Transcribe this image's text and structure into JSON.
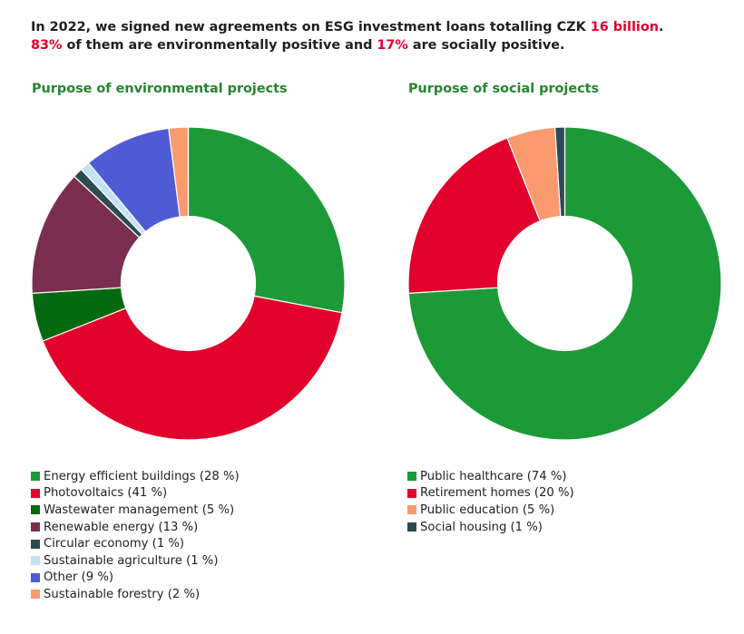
{
  "headline": {
    "l1_a": "In 2022, we signed new agreements on ESG investment loans totalling CZK ",
    "l1_b": "16 billion",
    "l1_c": ".",
    "l2_a": "83%",
    "l2_b": " of them are environmentally positive and ",
    "l2_c": "17%",
    "l2_d": " are socially positive."
  },
  "colors": {
    "accent_red": "#e2002c",
    "title_green": "#23862f"
  },
  "chart_data": [
    {
      "type": "pie",
      "donut": true,
      "title": "Purpose of environmental projects",
      "legend_position": "bottom",
      "slices": [
        {
          "label": "Energy efficient buildings (28 %)",
          "value": 28,
          "color": "#1b9a37"
        },
        {
          "label": "Photovoltaics (41 %)",
          "value": 41,
          "color": "#e2002c"
        },
        {
          "label": "Wastewater management (5 %)",
          "value": 5,
          "color": "#056a0f"
        },
        {
          "label": "Renewable energy (13 %)",
          "value": 13,
          "color": "#7a2f50"
        },
        {
          "label": "Circular economy (1 %)",
          "value": 1,
          "color": "#2e4a52"
        },
        {
          "label": "Sustainable agriculture (1 %)",
          "value": 1,
          "color": "#c4e2f7"
        },
        {
          "label": "Other (9 %)",
          "value": 9,
          "color": "#4f5bd5"
        },
        {
          "label": "Sustainable forestry (2 %)",
          "value": 2,
          "color": "#fa9a6e"
        }
      ]
    },
    {
      "type": "pie",
      "donut": true,
      "title": "Purpose of social projects",
      "legend_position": "bottom",
      "slices": [
        {
          "label": "Public healthcare (74 %)",
          "value": 74,
          "color": "#1b9a37"
        },
        {
          "label": "Retirement homes (20 %)",
          "value": 20,
          "color": "#e2002c"
        },
        {
          "label": "Public education (5 %)",
          "value": 5,
          "color": "#fa9a6e"
        },
        {
          "label": "Social housing (1 %)",
          "value": 1,
          "color": "#2e4a52"
        }
      ]
    }
  ]
}
